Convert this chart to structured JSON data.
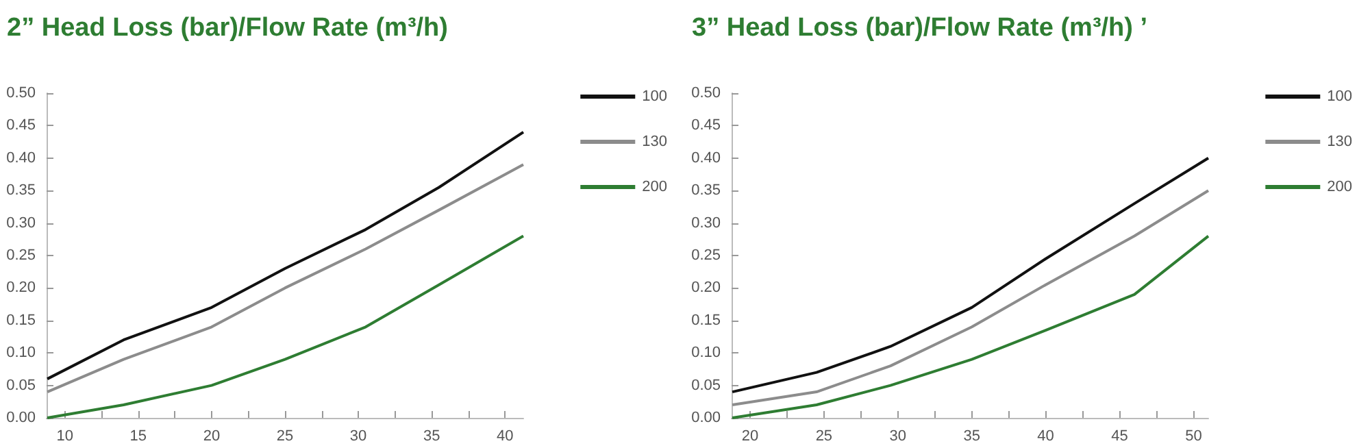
{
  "chart_data": [
    {
      "type": "line",
      "title": "2” Head Loss (bar)/Flow Rate (m³/h)",
      "xlim": [
        8.75,
        41.25
      ],
      "ylim": [
        0,
        0.5
      ],
      "xticks": [
        10,
        {
          "value": 12.5,
          "label": null
        },
        15,
        {
          "value": 17.5,
          "label": null
        },
        20,
        {
          "value": 22.5,
          "label": null
        },
        25,
        {
          "value": 27.5,
          "label": null
        },
        30,
        {
          "value": 32.5,
          "label": null
        },
        35,
        {
          "value": 37.5,
          "label": null
        },
        40
      ],
      "yticks": [
        {
          "value": 0,
          "label": "0.00"
        },
        {
          "value": 0.05,
          "label": "0.05"
        },
        {
          "value": 0.1,
          "label": "0.10"
        },
        {
          "value": 0.15,
          "label": "0.15"
        },
        {
          "value": 0.2,
          "label": "0.20"
        },
        {
          "value": 0.25,
          "label": "0.25"
        },
        {
          "value": 0.3,
          "label": "0.30"
        },
        {
          "value": 0.35,
          "label": "0.35"
        },
        {
          "value": 0.4,
          "label": "0.40"
        },
        {
          "value": 0.45,
          "label": "0.45"
        },
        {
          "value": 0.5,
          "label": "0.50"
        }
      ],
      "x": [
        8.8,
        14,
        20,
        25,
        30.5,
        35.5,
        41.25
      ],
      "series": [
        {
          "name": "100",
          "color": "#111111",
          "values": [
            0.06,
            0.12,
            0.17,
            0.23,
            0.29,
            0.355,
            0.44
          ]
        },
        {
          "name": "130",
          "color": "#8c8c8c",
          "values": [
            0.04,
            0.09,
            0.14,
            0.2,
            0.26,
            0.32,
            0.39
          ]
        },
        {
          "name": "200",
          "color": "#2e7d32",
          "values": [
            0,
            0.02,
            0.05,
            0.09,
            0.14,
            0.205,
            0.28
          ]
        }
      ],
      "legend": "top right",
      "grid": false,
      "marker": "none"
    },
    {
      "type": "line",
      "title": "3” Head Loss (bar)/Flow Rate (m³/h) ’",
      "xlim": [
        18.75,
        51
      ],
      "ylim": [
        0,
        0.5
      ],
      "xticks": [
        20,
        {
          "value": 22.5,
          "label": null
        },
        25,
        {
          "value": 27.5,
          "label": null
        },
        30,
        {
          "value": 32.5,
          "label": null
        },
        35,
        {
          "value": 37.5,
          "label": null
        },
        40,
        {
          "value": 42.5,
          "label": null
        },
        45,
        {
          "value": 47.5,
          "label": null
        },
        50
      ],
      "yticks": [
        {
          "value": 0,
          "label": "0.00"
        },
        {
          "value": 0.05,
          "label": "0.05"
        },
        {
          "value": 0.1,
          "label": "0.10"
        },
        {
          "value": 0.15,
          "label": "0.15"
        },
        {
          "value": 0.2,
          "label": "0.20"
        },
        {
          "value": 0.25,
          "label": "0.25"
        },
        {
          "value": 0.3,
          "label": "0.30"
        },
        {
          "value": 0.35,
          "label": "0.35"
        },
        {
          "value": 0.4,
          "label": "0.40"
        },
        {
          "value": 0.45,
          "label": "0.45"
        },
        {
          "value": 0.5,
          "label": "0.50"
        }
      ],
      "x": [
        18.8,
        24.5,
        29.5,
        35,
        40,
        46,
        51
      ],
      "series": [
        {
          "name": "100",
          "color": "#111111",
          "values": [
            0.04,
            0.07,
            0.11,
            0.17,
            0.245,
            0.33,
            0.4
          ]
        },
        {
          "name": "130",
          "color": "#8c8c8c",
          "values": [
            0.02,
            0.04,
            0.08,
            0.14,
            0.205,
            0.28,
            0.35
          ]
        },
        {
          "name": "200",
          "color": "#2e7d32",
          "values": [
            0,
            0.02,
            0.05,
            0.09,
            0.135,
            0.19,
            0.28
          ]
        }
      ],
      "legend": "top right",
      "grid": false,
      "marker": "none"
    }
  ]
}
